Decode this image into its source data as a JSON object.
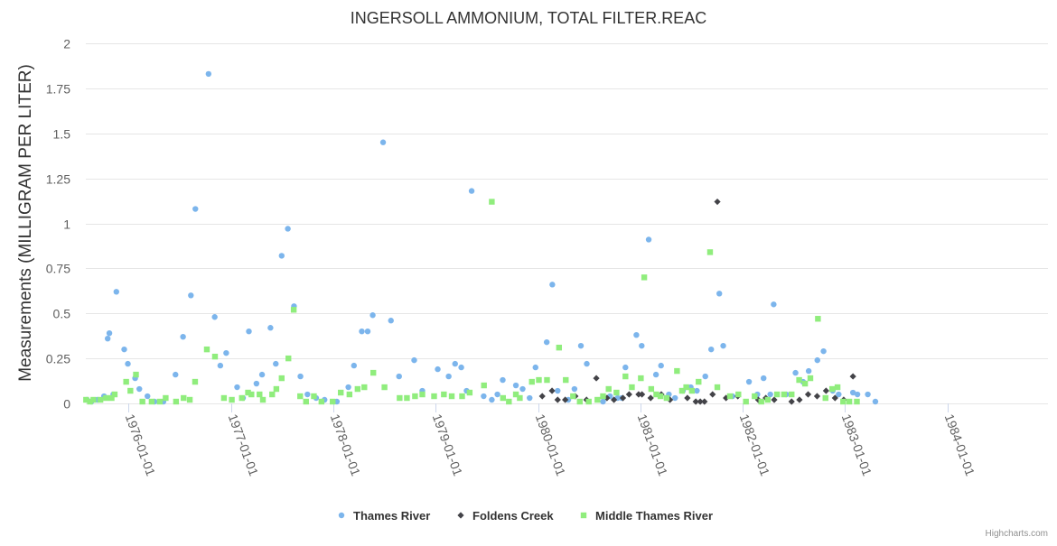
{
  "chart_data": {
    "type": "scatter",
    "title": "INGERSOLL AMMONIUM, TOTAL FILTER.REAC",
    "ylabel": "Measurements (MILLIGRAM PER LITER)",
    "xlabel": "",
    "ylim": [
      0,
      2
    ],
    "xlim": [
      "1975-08-01",
      "1984-12-25"
    ],
    "y_ticks": [
      "0",
      "0.25",
      "0.5",
      "0.75",
      "1",
      "1.25",
      "1.5",
      "1.75",
      "2"
    ],
    "x_ticks": [
      "1976-01-01",
      "1977-01-01",
      "1978-01-01",
      "1979-01-01",
      "1980-01-01",
      "1981-01-01",
      "1982-01-01",
      "1983-01-01",
      "1984-01-01"
    ],
    "grid": true,
    "legend": "bottom-center",
    "credits": "Highcharts.com",
    "series": [
      {
        "name": "Thames River",
        "color": "#7cb5ec",
        "marker": "circle",
        "points": [
          [
            "1975-08-05",
            0.02
          ],
          [
            "1975-08-21",
            0.01
          ],
          [
            "1975-09-12",
            0.02
          ],
          [
            "1975-10-05",
            0.04
          ],
          [
            "1975-10-18",
            0.36
          ],
          [
            "1975-10-24",
            0.39
          ],
          [
            "1975-11-07",
            0.05
          ],
          [
            "1975-11-18",
            0.62
          ],
          [
            "1975-12-16",
            0.3
          ],
          [
            "1975-12-29",
            0.22
          ],
          [
            "1976-01-24",
            0.14
          ],
          [
            "1976-02-08",
            0.08
          ],
          [
            "1976-03-08",
            0.04
          ],
          [
            "1976-04-02",
            0.01
          ],
          [
            "1976-05-04",
            0.01
          ],
          [
            "1976-06-16",
            0.16
          ],
          [
            "1976-07-13",
            0.37
          ],
          [
            "1976-08-10",
            0.6
          ],
          [
            "1976-08-26",
            1.08
          ],
          [
            "1976-10-12",
            1.83
          ],
          [
            "1976-11-03",
            0.48
          ],
          [
            "1976-11-23",
            0.21
          ],
          [
            "1976-12-14",
            0.28
          ],
          [
            "1977-01-22",
            0.09
          ],
          [
            "1977-02-12",
            0.03
          ],
          [
            "1977-03-05",
            0.4
          ],
          [
            "1977-04-01",
            0.11
          ],
          [
            "1977-04-21",
            0.16
          ],
          [
            "1977-05-21",
            0.42
          ],
          [
            "1977-06-09",
            0.22
          ],
          [
            "1977-06-30",
            0.82
          ],
          [
            "1977-07-22",
            0.97
          ],
          [
            "1977-08-13",
            0.54
          ],
          [
            "1977-09-05",
            0.15
          ],
          [
            "1977-09-30",
            0.05
          ],
          [
            "1977-10-31",
            0.03
          ],
          [
            "1977-11-30",
            0.02
          ],
          [
            "1978-01-13",
            0.01
          ],
          [
            "1978-02-23",
            0.09
          ],
          [
            "1978-03-15",
            0.21
          ],
          [
            "1978-04-12",
            0.4
          ],
          [
            "1978-05-03",
            0.4
          ],
          [
            "1978-05-21",
            0.49
          ],
          [
            "1978-06-27",
            1.45
          ],
          [
            "1978-07-25",
            0.46
          ],
          [
            "1978-08-23",
            0.15
          ],
          [
            "1978-10-16",
            0.24
          ],
          [
            "1978-11-14",
            0.07
          ],
          [
            "1979-01-08",
            0.19
          ],
          [
            "1979-02-16",
            0.15
          ],
          [
            "1979-03-11",
            0.22
          ],
          [
            "1979-04-02",
            0.2
          ],
          [
            "1979-04-21",
            0.07
          ],
          [
            "1979-05-09",
            1.18
          ],
          [
            "1979-06-21",
            0.04
          ],
          [
            "1979-07-20",
            0.02
          ],
          [
            "1979-08-09",
            0.05
          ],
          [
            "1979-08-28",
            0.13
          ],
          [
            "1979-10-14",
            0.1
          ],
          [
            "1979-11-07",
            0.08
          ],
          [
            "1979-12-02",
            0.03
          ],
          [
            "1979-12-23",
            0.2
          ],
          [
            "1980-02-01",
            0.34
          ],
          [
            "1980-02-21",
            0.66
          ],
          [
            "1980-03-11",
            0.07
          ],
          [
            "1980-04-18",
            0.02
          ],
          [
            "1980-05-10",
            0.08
          ],
          [
            "1980-06-02",
            0.32
          ],
          [
            "1980-06-23",
            0.22
          ],
          [
            "1980-08-20",
            0.01
          ],
          [
            "1980-09-14",
            0.04
          ],
          [
            "1980-10-11",
            0.03
          ],
          [
            "1980-10-26",
            0.03
          ],
          [
            "1980-11-08",
            0.2
          ],
          [
            "1980-12-17",
            0.38
          ],
          [
            "1981-01-05",
            0.32
          ],
          [
            "1981-01-30",
            0.91
          ],
          [
            "1981-02-25",
            0.16
          ],
          [
            "1981-03-15",
            0.21
          ],
          [
            "1981-04-12",
            0.05
          ],
          [
            "1981-05-04",
            0.03
          ],
          [
            "1981-06-01",
            0.07
          ],
          [
            "1981-06-29",
            0.09
          ],
          [
            "1981-07-21",
            0.07
          ],
          [
            "1981-08-20",
            0.15
          ],
          [
            "1981-09-10",
            0.3
          ],
          [
            "1981-10-09",
            0.61
          ],
          [
            "1981-10-23",
            0.32
          ],
          [
            "1981-11-25",
            0.04
          ],
          [
            "1982-01-23",
            0.12
          ],
          [
            "1982-02-22",
            0.05
          ],
          [
            "1982-03-16",
            0.14
          ],
          [
            "1982-04-09",
            0.05
          ],
          [
            "1982-04-21",
            0.55
          ],
          [
            "1982-06-05",
            0.05
          ],
          [
            "1982-07-08",
            0.17
          ],
          [
            "1982-08-04",
            0.12
          ],
          [
            "1982-08-24",
            0.18
          ],
          [
            "1982-09-24",
            0.24
          ],
          [
            "1982-10-16",
            0.29
          ],
          [
            "1982-11-18",
            0.07
          ],
          [
            "1982-12-09",
            0.05
          ],
          [
            "1983-01-29",
            0.06
          ],
          [
            "1983-02-14",
            0.05
          ],
          [
            "1983-03-23",
            0.05
          ],
          [
            "1983-04-19",
            0.01
          ]
        ]
      },
      {
        "name": "Foldens Creek",
        "color": "#434348",
        "marker": "diamond",
        "points": [
          [
            "1980-01-16",
            0.04
          ],
          [
            "1980-02-20",
            0.07
          ],
          [
            "1980-03-11",
            0.02
          ],
          [
            "1980-04-07",
            0.02
          ],
          [
            "1980-05-13",
            0.04
          ],
          [
            "1980-06-22",
            0.02
          ],
          [
            "1980-07-27",
            0.14
          ],
          [
            "1980-09-03",
            0.03
          ],
          [
            "1980-09-28",
            0.02
          ],
          [
            "1980-10-30",
            0.03
          ],
          [
            "1980-11-21",
            0.05
          ],
          [
            "1980-12-25",
            0.05
          ],
          [
            "1981-01-06",
            0.05
          ],
          [
            "1981-02-06",
            0.03
          ],
          [
            "1981-03-16",
            0.05
          ],
          [
            "1981-04-16",
            0.02
          ],
          [
            "1981-06-17",
            0.03
          ],
          [
            "1981-07-17",
            0.01
          ],
          [
            "1981-08-02",
            0.01
          ],
          [
            "1981-08-17",
            0.01
          ],
          [
            "1981-09-15",
            0.05
          ],
          [
            "1981-10-02",
            1.12
          ],
          [
            "1981-11-02",
            0.03
          ],
          [
            "1981-12-14",
            0.04
          ],
          [
            "1982-02-25",
            0.02
          ],
          [
            "1982-03-24",
            0.03
          ],
          [
            "1982-04-23",
            0.02
          ],
          [
            "1982-06-24",
            0.01
          ],
          [
            "1982-07-22",
            0.02
          ],
          [
            "1982-08-22",
            0.05
          ],
          [
            "1982-09-23",
            0.04
          ],
          [
            "1982-10-25",
            0.07
          ],
          [
            "1982-11-26",
            0.03
          ],
          [
            "1982-12-27",
            0.02
          ],
          [
            "1983-01-29",
            0.15
          ]
        ]
      },
      {
        "name": "Middle Thames River",
        "color": "#90ed7d",
        "marker": "square",
        "points": [
          [
            "1975-08-02",
            0.02
          ],
          [
            "1975-08-16",
            0.01
          ],
          [
            "1975-08-28",
            0.02
          ],
          [
            "1975-09-22",
            0.02
          ],
          [
            "1975-10-12",
            0.03
          ],
          [
            "1975-11-01",
            0.03
          ],
          [
            "1975-11-12",
            0.05
          ],
          [
            "1975-12-23",
            0.12
          ],
          [
            "1976-01-07",
            0.07
          ],
          [
            "1976-01-27",
            0.16
          ],
          [
            "1976-02-19",
            0.01
          ],
          [
            "1976-03-23",
            0.01
          ],
          [
            "1976-04-21",
            0.01
          ],
          [
            "1976-05-12",
            0.03
          ],
          [
            "1976-06-18",
            0.01
          ],
          [
            "1976-07-15",
            0.03
          ],
          [
            "1976-08-06",
            0.02
          ],
          [
            "1976-08-25",
            0.12
          ],
          [
            "1976-10-06",
            0.3
          ],
          [
            "1976-11-04",
            0.26
          ],
          [
            "1976-12-06",
            0.03
          ],
          [
            "1977-01-03",
            0.02
          ],
          [
            "1977-02-08",
            0.03
          ],
          [
            "1977-03-02",
            0.06
          ],
          [
            "1977-03-14",
            0.05
          ],
          [
            "1977-04-12",
            0.05
          ],
          [
            "1977-04-24",
            0.02
          ],
          [
            "1977-05-27",
            0.05
          ],
          [
            "1977-06-11",
            0.08
          ],
          [
            "1977-06-30",
            0.14
          ],
          [
            "1977-07-24",
            0.25
          ],
          [
            "1977-08-12",
            0.52
          ],
          [
            "1977-09-04",
            0.04
          ],
          [
            "1977-09-25",
            0.01
          ],
          [
            "1977-10-23",
            0.04
          ],
          [
            "1977-11-19",
            0.01
          ],
          [
            "1977-12-29",
            0.01
          ],
          [
            "1978-01-27",
            0.06
          ],
          [
            "1978-02-27",
            0.05
          ],
          [
            "1978-03-28",
            0.08
          ],
          [
            "1978-04-21",
            0.09
          ],
          [
            "1978-05-23",
            0.17
          ],
          [
            "1978-07-02",
            0.09
          ],
          [
            "1978-08-25",
            0.03
          ],
          [
            "1978-09-20",
            0.03
          ],
          [
            "1978-10-19",
            0.04
          ],
          [
            "1978-11-14",
            0.05
          ],
          [
            "1978-12-26",
            0.04
          ],
          [
            "1979-01-30",
            0.05
          ],
          [
            "1979-02-27",
            0.04
          ],
          [
            "1979-04-05",
            0.04
          ],
          [
            "1979-05-02",
            0.06
          ],
          [
            "1979-06-22",
            0.1
          ],
          [
            "1979-07-20",
            1.12
          ],
          [
            "1979-08-29",
            0.03
          ],
          [
            "1979-09-19",
            0.01
          ],
          [
            "1979-10-14",
            0.05
          ],
          [
            "1979-10-28",
            0.03
          ],
          [
            "1979-12-10",
            0.12
          ],
          [
            "1980-01-04",
            0.13
          ],
          [
            "1980-02-02",
            0.13
          ],
          [
            "1980-03-16",
            0.31
          ],
          [
            "1980-04-09",
            0.13
          ],
          [
            "1980-05-05",
            0.04
          ],
          [
            "1980-05-29",
            0.01
          ],
          [
            "1980-06-30",
            0.01
          ],
          [
            "1980-07-31",
            0.02
          ],
          [
            "1980-08-20",
            0.04
          ],
          [
            "1980-09-09",
            0.08
          ],
          [
            "1980-10-07",
            0.06
          ],
          [
            "1980-11-08",
            0.15
          ],
          [
            "1980-12-01",
            0.09
          ],
          [
            "1981-01-02",
            0.14
          ],
          [
            "1981-01-14",
            0.7
          ],
          [
            "1981-02-08",
            0.08
          ],
          [
            "1981-02-26",
            0.05
          ],
          [
            "1981-03-13",
            0.04
          ],
          [
            "1981-04-04",
            0.03
          ],
          [
            "1981-05-11",
            0.18
          ],
          [
            "1981-05-29",
            0.07
          ],
          [
            "1981-06-13",
            0.09
          ],
          [
            "1981-07-03",
            0.07
          ],
          [
            "1981-07-27",
            0.12
          ],
          [
            "1981-09-06",
            0.84
          ],
          [
            "1981-10-02",
            0.09
          ],
          [
            "1981-11-16",
            0.04
          ],
          [
            "1981-12-16",
            0.05
          ],
          [
            "1982-01-12",
            0.01
          ],
          [
            "1982-02-12",
            0.04
          ],
          [
            "1982-03-08",
            0.01
          ],
          [
            "1982-03-31",
            0.02
          ],
          [
            "1982-05-03",
            0.05
          ],
          [
            "1982-05-28",
            0.05
          ],
          [
            "1982-06-24",
            0.05
          ],
          [
            "1982-07-21",
            0.13
          ],
          [
            "1982-08-11",
            0.11
          ],
          [
            "1982-08-30",
            0.14
          ],
          [
            "1982-09-26",
            0.47
          ],
          [
            "1982-10-23",
            0.03
          ],
          [
            "1982-11-16",
            0.08
          ],
          [
            "1982-12-05",
            0.09
          ],
          [
            "1982-12-25",
            0.01
          ],
          [
            "1983-01-16",
            0.01
          ],
          [
            "1983-02-12",
            0.01
          ]
        ]
      }
    ]
  }
}
